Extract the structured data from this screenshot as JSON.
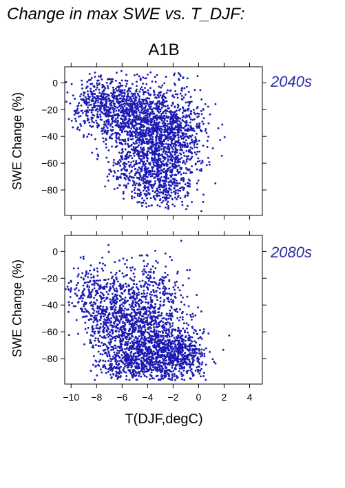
{
  "page_title": "Change in max SWE vs. T_DJF:",
  "scenario": "A1B",
  "chart_data": [
    {
      "type": "scatter",
      "panel_label": "2040s",
      "ylabel": "SWE Change (%)",
      "xlabel": "",
      "xlim": [
        -10.5,
        5
      ],
      "ylim": [
        -99,
        12
      ],
      "xticks": [
        -10,
        -8,
        -6,
        -4,
        -2,
        0,
        2,
        4
      ],
      "yticks": [
        0,
        -20,
        -40,
        -60,
        -80
      ],
      "grid": false,
      "density": [
        {
          "cx": -8.5,
          "cy": -15,
          "sx": 0.9,
          "sy": 9,
          "n": 160
        },
        {
          "cx": -7.0,
          "cy": -20,
          "sx": 1.1,
          "sy": 12,
          "n": 320
        },
        {
          "cx": -5.0,
          "cy": -25,
          "sx": 1.4,
          "sy": 16,
          "n": 520
        },
        {
          "cx": -3.5,
          "cy": -35,
          "sx": 1.5,
          "sy": 18,
          "n": 620
        },
        {
          "cx": -2.5,
          "cy": -45,
          "sx": 1.4,
          "sy": 20,
          "n": 460
        },
        {
          "cx": -4.5,
          "cy": -65,
          "sx": 1.5,
          "sy": 12,
          "n": 260
        },
        {
          "cx": -3.0,
          "cy": -80,
          "sx": 1.2,
          "sy": 7,
          "n": 170
        },
        {
          "cx": -1.5,
          "cy": -55,
          "sx": 0.9,
          "sy": 18,
          "n": 170
        },
        {
          "cx": -0.5,
          "cy": -30,
          "sx": 0.8,
          "sy": 12,
          "n": 70
        }
      ]
    },
    {
      "type": "scatter",
      "panel_label": "2080s",
      "ylabel": "SWE Change (%)",
      "xlabel": "T(DJF,degC)",
      "xlim": [
        -10.5,
        5
      ],
      "ylim": [
        -99,
        12
      ],
      "xticks": [
        -10,
        -8,
        -6,
        -4,
        -2,
        0,
        2,
        4
      ],
      "yticks": [
        0,
        -20,
        -40,
        -60,
        -80
      ],
      "grid": false,
      "density": [
        {
          "cx": -9.0,
          "cy": -30,
          "sx": 0.8,
          "sy": 10,
          "n": 110
        },
        {
          "cx": -7.5,
          "cy": -45,
          "sx": 1.0,
          "sy": 15,
          "n": 260
        },
        {
          "cx": -6.0,
          "cy": -55,
          "sx": 1.2,
          "sy": 18,
          "n": 420
        },
        {
          "cx": -4.0,
          "cy": -65,
          "sx": 1.4,
          "sy": 18,
          "n": 640
        },
        {
          "cx": -2.5,
          "cy": -75,
          "sx": 1.3,
          "sy": 13,
          "n": 580
        },
        {
          "cx": -4.0,
          "cy": -30,
          "sx": 1.5,
          "sy": 13,
          "n": 260
        },
        {
          "cx": -1.0,
          "cy": -80,
          "sx": 0.9,
          "sy": 9,
          "n": 210
        },
        {
          "cx": -5.5,
          "cy": -85,
          "sx": 1.2,
          "sy": 6,
          "n": 190
        }
      ]
    }
  ],
  "colors": {
    "points": "#1c1cb4",
    "panel_label": "#2a2aae",
    "axis": "#000000"
  }
}
